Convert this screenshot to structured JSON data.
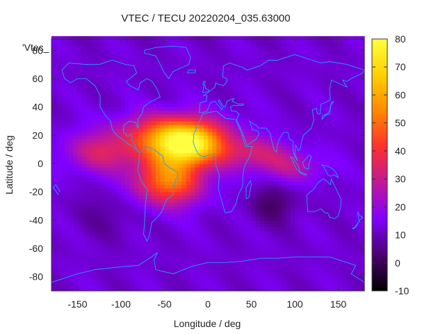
{
  "chart_data": {
    "type": "heatmap",
    "title": "VTEC / TECU 20220204_035.63000",
    "xlabel": "Longitude / deg",
    "ylabel": "Latitude / deg",
    "series_label": "'Vtec_",
    "xlim": [
      -180,
      180
    ],
    "ylim": [
      -90,
      88
    ],
    "xticks": [
      "-150",
      "-100",
      "-50",
      "0",
      "50",
      "100",
      "150"
    ],
    "xtick_values": [
      -150,
      -100,
      -50,
      0,
      50,
      100,
      150
    ],
    "yticks": [
      "80",
      "60",
      "40",
      "20",
      "0",
      "-20",
      "-40",
      "-60",
      "-80"
    ],
    "ytick_values": [
      80,
      60,
      40,
      20,
      0,
      -20,
      -40,
      -60,
      -80
    ],
    "colorbar": {
      "range": [
        -10,
        80
      ],
      "ticks": [
        "80",
        "70",
        "60",
        "50",
        "40",
        "30",
        "20",
        "10",
        "0",
        "-10"
      ],
      "tick_values": [
        80,
        70,
        60,
        50,
        40,
        30,
        20,
        10,
        0,
        -10
      ],
      "palette": [
        "#000000",
        "#4b006e",
        "#8000ff",
        "#c0189a",
        "#ff2f2f",
        "#ff8800",
        "#ffd000",
        "#ffff40"
      ]
    },
    "background_value": 12,
    "features": [
      {
        "name": "equatorial-anomaly-core",
        "lon": -25,
        "lat": 12,
        "sigma_lon": 28,
        "sigma_lat": 10,
        "amplitude": 54
      },
      {
        "name": "south-america-africa-crest",
        "lon": -45,
        "lat": -12,
        "sigma_lon": 28,
        "sigma_lat": 12,
        "amplitude": 40
      },
      {
        "name": "north-crest",
        "lon": -40,
        "lat": 22,
        "sigma_lon": 42,
        "sigma_lat": 10,
        "amplitude": 32
      },
      {
        "name": "east-pacific-band",
        "lon": -120,
        "lat": 8,
        "sigma_lon": 32,
        "sigma_lat": 10,
        "amplitude": 20
      },
      {
        "name": "indian-ocean-band",
        "lon": 50,
        "lat": 8,
        "sigma_lon": 28,
        "sigma_lat": 8,
        "amplitude": 18
      },
      {
        "name": "southeast-asia-band",
        "lon": 95,
        "lat": -2,
        "sigma_lon": 28,
        "sigma_lat": 8,
        "amplitude": 14
      },
      {
        "name": "southern-trough",
        "lon": 75,
        "lat": -28,
        "sigma_lon": 18,
        "sigma_lat": 10,
        "amplitude": -10
      },
      {
        "name": "south-pacific-trough",
        "lon": -115,
        "lat": -35,
        "sigma_lon": 25,
        "sigma_lat": 12,
        "amplitude": -5
      }
    ],
    "coastline_color": "#1ea0ff"
  }
}
